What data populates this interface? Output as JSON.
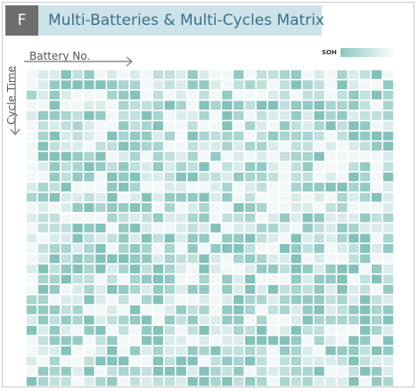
{
  "panel": {
    "letter": "F",
    "title": "Multi-Batteries & Multi-Cycles Matrix"
  },
  "legend": {
    "label": "SOH",
    "color_high": "#8cc5c0",
    "color_low": "#ffffff"
  },
  "axes": {
    "x_label": "Battery No.",
    "y_label": "Cycle Time",
    "arrow_color": "#8a8a8a"
  },
  "matrix": {
    "rows": 31,
    "cols": 32,
    "palette": [
      "#f2f8f7",
      "#d9eceb",
      "#c1e0dd",
      "#a9d4d0",
      "#94c9c4",
      "#84c1bb"
    ]
  }
}
